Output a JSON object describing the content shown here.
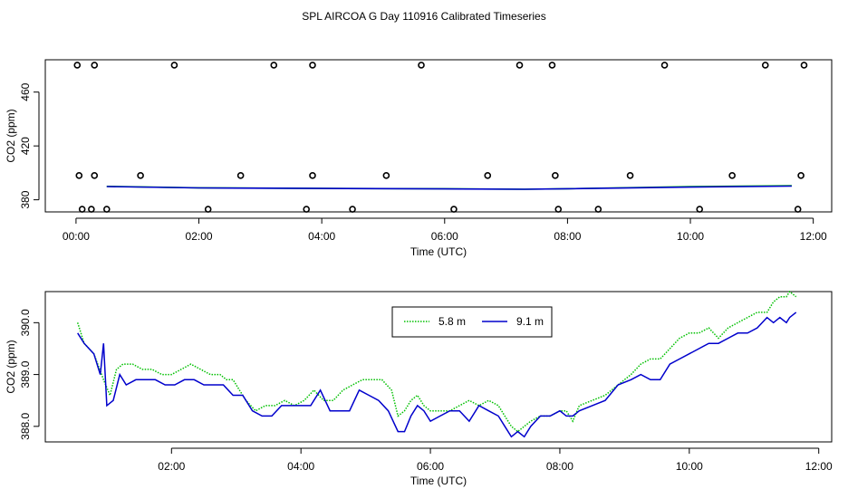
{
  "title": "SPL AIRCOA G  Day 110916  Calibrated Timeseries",
  "colors": {
    "green": "#00c000",
    "blue": "#0000cc",
    "black": "#000000"
  },
  "chart_data": [
    {
      "type": "scatter",
      "title": "SPL AIRCOA G  Day 110916  Calibrated Timeseries",
      "xlabel": "Time (UTC)",
      "ylabel": "CO2 (ppm)",
      "xlim": [
        -0.5,
        12.3
      ],
      "ylim": [
        371,
        484
      ],
      "x_ticks": [
        0,
        2,
        4,
        6,
        8,
        10,
        12
      ],
      "x_tick_labels": [
        "00:00",
        "02:00",
        "04:00",
        "06:00",
        "08:00",
        "10:00",
        "12:00"
      ],
      "y_ticks": [
        380,
        420,
        460
      ],
      "y_tick_labels": [
        "380",
        "420",
        "460"
      ],
      "series": [
        {
          "name": "calibration points",
          "x": [
            0.02,
            0.3,
            1.6,
            3.22,
            3.85,
            5.62,
            7.22,
            7.75,
            9.58,
            11.22,
            11.85,
            0.05,
            0.3,
            1.05,
            2.68,
            3.85,
            5.05,
            6.7,
            7.8,
            9.02,
            10.68,
            11.8,
            0.1,
            0.25,
            0.5,
            2.15,
            3.75,
            4.5,
            6.15,
            7.85,
            8.5,
            10.15,
            11.75
          ],
          "y": [
            480,
            480,
            480,
            480,
            480,
            480,
            480,
            480,
            480,
            480,
            480,
            398,
            398,
            398,
            398,
            398,
            398,
            398,
            398,
            398,
            398,
            398,
            373,
            373,
            373,
            373,
            373,
            373,
            373,
            373,
            373,
            373,
            373
          ]
        },
        {
          "name": "5.8 m",
          "x": [
            0.5,
            2.0,
            4.0,
            6.0,
            7.3,
            8.0,
            10.0,
            11.65
          ],
          "y": [
            390.0,
            388.9,
            388.4,
            388.2,
            387.8,
            388.2,
            389.8,
            390.5
          ]
        },
        {
          "name": "9.1 m",
          "x": [
            0.5,
            2.0,
            4.0,
            6.0,
            7.3,
            8.0,
            10.0,
            11.65
          ],
          "y": [
            389.8,
            388.8,
            388.4,
            388.1,
            387.8,
            388.2,
            389.4,
            390.2
          ]
        }
      ]
    },
    {
      "type": "line",
      "xlabel": "Time (UTC)",
      "ylabel": "CO2 (ppm)",
      "xlim": [
        0.05,
        12.2
      ],
      "ylim": [
        387.7,
        390.6
      ],
      "x_ticks": [
        2,
        4,
        6,
        8,
        10,
        12
      ],
      "x_tick_labels": [
        "02:00",
        "04:00",
        "06:00",
        "08:00",
        "10:00",
        "12:00"
      ],
      "y_ticks": [
        388.0,
        389.0,
        390.0
      ],
      "y_tick_labels": [
        "388.0",
        "389.0",
        "390.0"
      ],
      "legend": {
        "position": "top-center",
        "entries": [
          "5.8 m",
          "9.1 m"
        ]
      },
      "series": [
        {
          "name": "5.8 m",
          "x": [
            0.55,
            0.65,
            0.8,
            0.95,
            1.05,
            1.15,
            1.25,
            1.4,
            1.55,
            1.7,
            1.85,
            2.0,
            2.15,
            2.3,
            2.45,
            2.6,
            2.75,
            2.85,
            2.95,
            3.05,
            3.15,
            3.3,
            3.45,
            3.6,
            3.75,
            3.9,
            4.05,
            4.2,
            4.35,
            4.5,
            4.65,
            4.8,
            4.95,
            5.1,
            5.25,
            5.4,
            5.5,
            5.6,
            5.7,
            5.8,
            5.9,
            6.0,
            6.15,
            6.3,
            6.45,
            6.6,
            6.75,
            6.9,
            7.05,
            7.15,
            7.25,
            7.35,
            7.45,
            7.55,
            7.7,
            7.85,
            8.0,
            8.1,
            8.2,
            8.3,
            8.5,
            8.7,
            8.9,
            9.1,
            9.25,
            9.4,
            9.55,
            9.7,
            9.85,
            10.0,
            10.15,
            10.3,
            10.45,
            10.6,
            10.75,
            10.9,
            11.05,
            11.2,
            11.3,
            11.4,
            11.5,
            11.55,
            11.65
          ],
          "y": [
            390.0,
            389.6,
            389.4,
            388.9,
            388.6,
            389.1,
            389.2,
            389.2,
            389.1,
            389.1,
            389.0,
            389.0,
            389.1,
            389.2,
            389.1,
            389.0,
            389.0,
            388.9,
            388.9,
            388.7,
            388.5,
            388.3,
            388.4,
            388.4,
            388.5,
            388.4,
            388.5,
            388.7,
            388.5,
            388.5,
            388.7,
            388.8,
            388.9,
            388.9,
            388.9,
            388.7,
            388.2,
            388.3,
            388.5,
            388.6,
            388.4,
            388.3,
            388.3,
            388.3,
            388.4,
            388.5,
            388.4,
            388.5,
            388.4,
            388.2,
            388.0,
            387.9,
            388.0,
            388.1,
            388.2,
            388.2,
            388.3,
            388.3,
            388.1,
            388.4,
            388.5,
            388.6,
            388.8,
            389.0,
            389.2,
            389.3,
            389.3,
            389.5,
            389.7,
            389.8,
            389.8,
            389.9,
            389.7,
            389.9,
            390.0,
            390.1,
            390.2,
            390.2,
            390.4,
            390.5,
            390.5,
            390.6,
            390.5
          ]
        },
        {
          "name": "9.1 m",
          "x": [
            0.55,
            0.65,
            0.8,
            0.9,
            0.95,
            1.0,
            1.1,
            1.2,
            1.3,
            1.45,
            1.6,
            1.75,
            1.9,
            2.05,
            2.2,
            2.35,
            2.5,
            2.65,
            2.8,
            2.95,
            3.1,
            3.25,
            3.4,
            3.55,
            3.7,
            3.85,
            4.0,
            4.15,
            4.3,
            4.45,
            4.6,
            4.75,
            4.9,
            5.05,
            5.2,
            5.35,
            5.5,
            5.6,
            5.7,
            5.8,
            5.9,
            6.0,
            6.15,
            6.3,
            6.45,
            6.6,
            6.75,
            6.9,
            7.05,
            7.15,
            7.25,
            7.35,
            7.45,
            7.55,
            7.7,
            7.85,
            8.0,
            8.1,
            8.2,
            8.3,
            8.5,
            8.7,
            8.9,
            9.1,
            9.25,
            9.4,
            9.55,
            9.7,
            9.85,
            10.0,
            10.15,
            10.3,
            10.45,
            10.6,
            10.75,
            10.9,
            11.05,
            11.2,
            11.3,
            11.4,
            11.5,
            11.55,
            11.65
          ],
          "y": [
            389.8,
            389.6,
            389.4,
            389.0,
            389.6,
            388.4,
            388.5,
            389.0,
            388.8,
            388.9,
            388.9,
            388.9,
            388.8,
            388.8,
            388.9,
            388.9,
            388.8,
            388.8,
            388.8,
            388.6,
            388.6,
            388.3,
            388.2,
            388.2,
            388.4,
            388.4,
            388.4,
            388.4,
            388.7,
            388.3,
            388.3,
            388.3,
            388.7,
            388.6,
            388.5,
            388.3,
            387.9,
            387.9,
            388.2,
            388.4,
            388.3,
            388.1,
            388.2,
            388.3,
            388.3,
            388.1,
            388.4,
            388.3,
            388.2,
            388.0,
            387.8,
            387.9,
            387.8,
            388.0,
            388.2,
            388.2,
            388.3,
            388.2,
            388.2,
            388.3,
            388.4,
            388.5,
            388.8,
            388.9,
            389.0,
            388.9,
            388.9,
            389.2,
            389.3,
            389.4,
            389.5,
            389.6,
            389.6,
            389.7,
            389.8,
            389.8,
            389.9,
            390.1,
            390.0,
            390.1,
            390.0,
            390.1,
            390.2
          ]
        }
      ]
    }
  ]
}
